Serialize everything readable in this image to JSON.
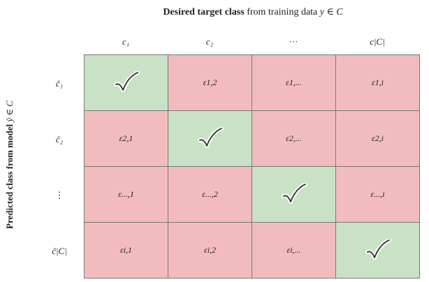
{
  "title": {
    "bold_part": "Desired target class",
    "plain_part": "from training data",
    "math": "y ∈ C"
  },
  "y_label": {
    "bold_part": "Predicted class from model",
    "math": "ŷ ∈ C"
  },
  "column_headers": [
    "c₁",
    "c₂",
    "···",
    "c|C|"
  ],
  "row_headers": [
    "ĉ₁",
    "ĉ₂",
    "⋮",
    "ĉ|C|"
  ],
  "cells": [
    [
      "check",
      "ε1,2",
      "ε1,...",
      "ε1,i"
    ],
    [
      "ε2,1",
      "check",
      "ε2,...",
      "ε2,i"
    ],
    [
      "ε...,1",
      "ε...,2",
      "check",
      "ε...,i"
    ],
    [
      "εi,1",
      "εi,2",
      "εi,...",
      "check"
    ]
  ],
  "colors": {
    "correct": "#c9e2c5",
    "error": "#f2bcbe"
  },
  "icons": {
    "correct_mark": "check-mark-icon"
  }
}
